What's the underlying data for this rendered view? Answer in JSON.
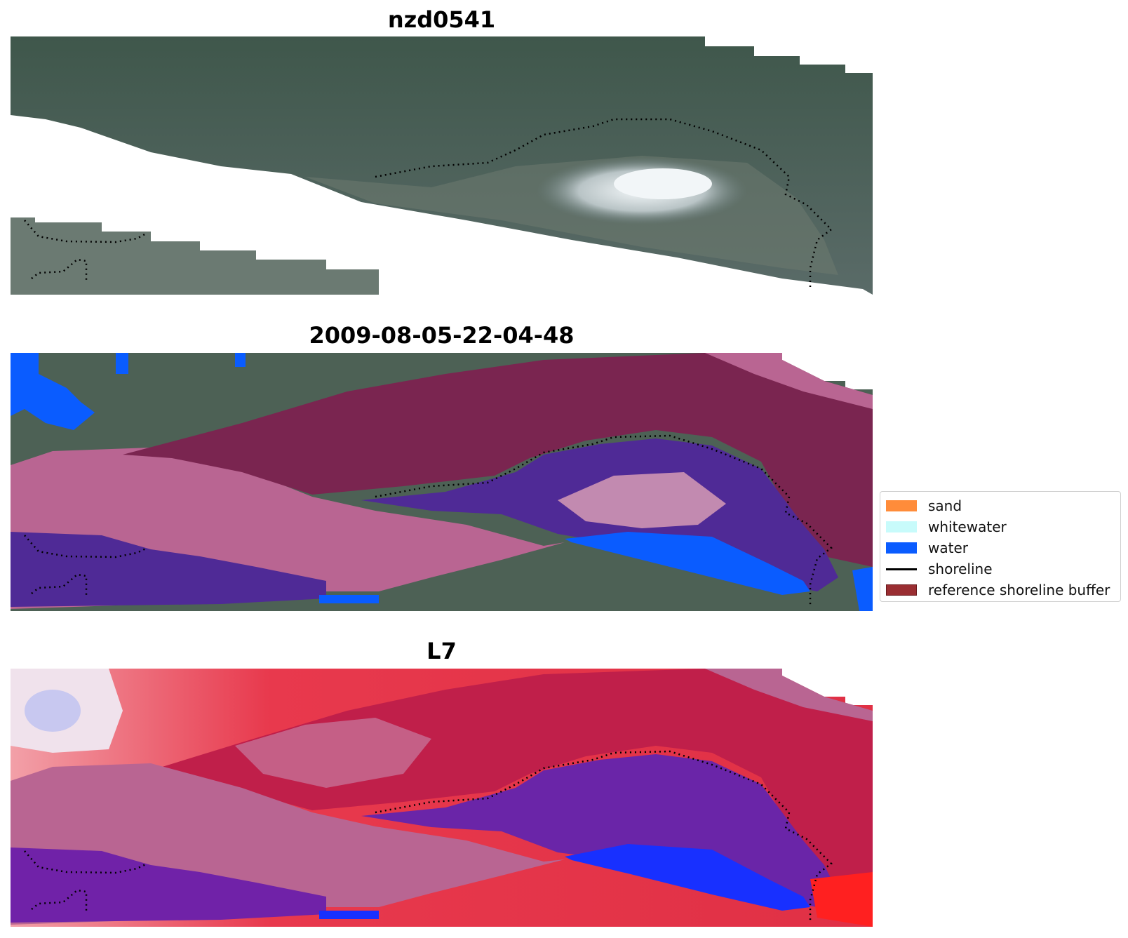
{
  "panels": [
    {
      "title": "nzd0541"
    },
    {
      "title": "2009-08-05-22-04-48"
    },
    {
      "title": "L7"
    }
  ],
  "legend": {
    "items": [
      {
        "label": "sand",
        "color": "#ff8c3a",
        "kind": "patch"
      },
      {
        "label": "whitewater",
        "color": "#c8fbfb",
        "kind": "patch"
      },
      {
        "label": "water",
        "color": "#0a5cff",
        "kind": "patch"
      },
      {
        "label": "shoreline",
        "color": "#000000",
        "kind": "line"
      },
      {
        "label": "reference shoreline buffer",
        "color": "#9a2e32",
        "kind": "patch"
      }
    ]
  },
  "colors": {
    "land": "#4a5e52",
    "land_dark": "#3a4d45",
    "sand_bright": "#e8eef0",
    "buffer_pink": "#b96592",
    "buffer_maroon": "#7a2550",
    "class_purple": "#4f2a96",
    "water_blue": "#0a5cff",
    "index_red": "#e8394d",
    "index_crimson": "#c01f4a",
    "index_purple": "#6a25a8",
    "index_blue": "#1830ff"
  }
}
